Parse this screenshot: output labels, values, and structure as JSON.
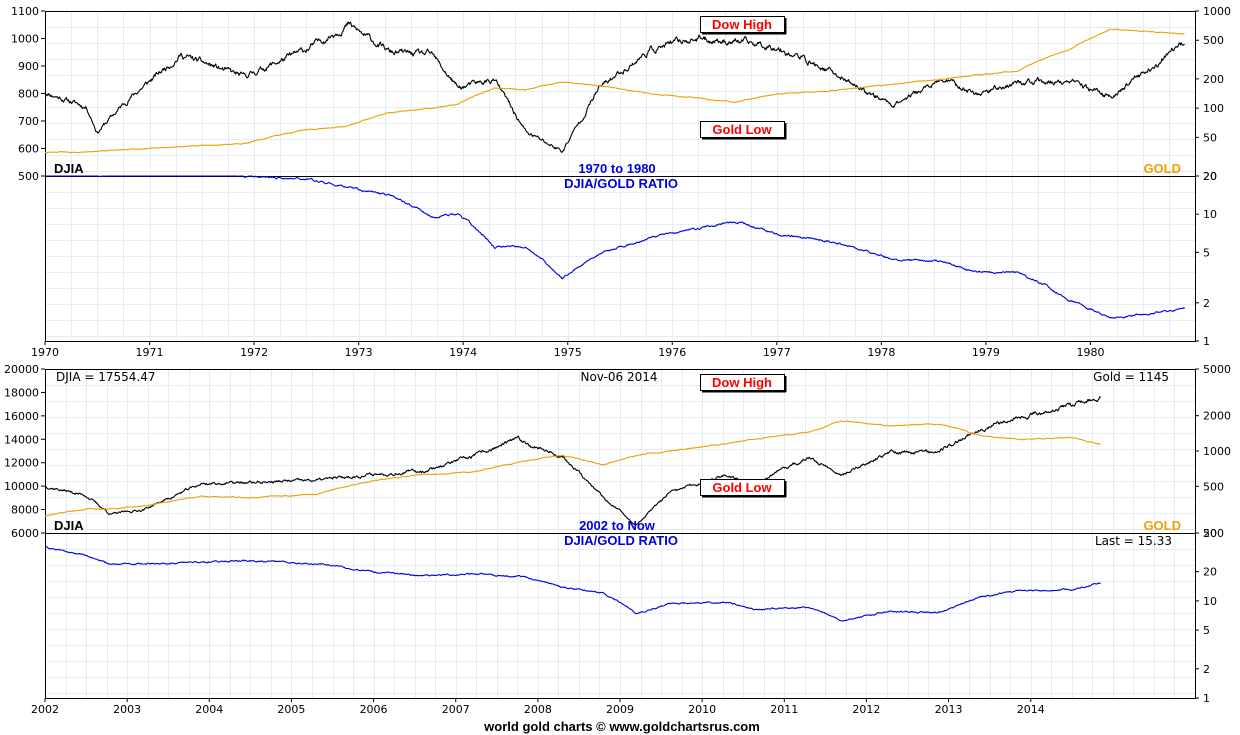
{
  "colors": {
    "djia": "#000000",
    "gold": "#f0a000",
    "ratio": "#0000dd",
    "grid": "#e4edf6",
    "note": "#ff0000"
  },
  "footer": "world gold charts © www.goldchartsrus.com",
  "panels": [
    {
      "id": "top",
      "range_label": "1970 to 1980",
      "ratio_title": "DJIA/GOLD RATIO",
      "djia_label": "DJIA",
      "gold_label": "GOLD",
      "dow_high_label": "Dow High",
      "gold_low_label": "Gold Low",
      "left_ticks": [
        "1100",
        "1000",
        "900",
        "800",
        "700",
        "600",
        "500"
      ],
      "right_ticks": [
        "1000",
        "500",
        "200",
        "100",
        "50",
        "20"
      ],
      "ratio_ticks": [
        "20",
        "10",
        "5",
        "2",
        "1"
      ],
      "year_labels": [
        "1970",
        "1971",
        "1972",
        "1973",
        "1974",
        "1975",
        "1976",
        "1977",
        "1978",
        "1979",
        "1980"
      ]
    },
    {
      "id": "bottom",
      "range_label": "2002 to Now",
      "ratio_title": "DJIA/GOLD RATIO",
      "djia_label": "DJIA",
      "gold_label": "GOLD",
      "dow_high_label": "Dow High",
      "gold_low_label": "Gold Low",
      "djia_value": "DJIA = 17554.47",
      "date": "Nov-06  2014",
      "gold_value": "Gold = 1145",
      "last_value": "Last = 15.33",
      "left_ticks": [
        "20000",
        "18000",
        "16000",
        "14000",
        "12000",
        "10000",
        "8000",
        "6000"
      ],
      "right_ticks": [
        "5000",
        "2000",
        "1000",
        "500",
        "200"
      ],
      "ratio_ticks": [
        "50",
        "20",
        "10",
        "5",
        "2",
        "1"
      ],
      "year_labels": [
        "2002",
        "2003",
        "2004",
        "2005",
        "2006",
        "2007",
        "2008",
        "2009",
        "2010",
        "2011",
        "2012",
        "2013",
        "2014"
      ]
    }
  ],
  "chart_data": [
    {
      "type": "line",
      "title": "1970 to 1980",
      "x": [
        1970.0,
        1970.4,
        1970.5,
        1970.8,
        1971.3,
        1971.9,
        1972.5,
        1972.9,
        1973.3,
        1973.7,
        1973.95,
        1974.3,
        1974.6,
        1974.95,
        1975.3,
        1975.8,
        1976.2,
        1976.6,
        1977.0,
        1977.5,
        1978.1,
        1978.6,
        1978.9,
        1979.3,
        1979.8,
        1980.2,
        1980.9
      ],
      "series": [
        {
          "name": "DJIA",
          "axis": "left",
          "values": [
            805,
            750,
            660,
            780,
            940,
            860,
            960,
            1050,
            950,
            940,
            820,
            850,
            660,
            590,
            820,
            960,
            1000,
            990,
            970,
            880,
            760,
            850,
            800,
            840,
            840,
            790,
            980
          ]
        },
        {
          "name": "GOLD",
          "axis": "right",
          "values": [
            35,
            35.5,
            36,
            37.5,
            40,
            43,
            60,
            65,
            90,
            100,
            110,
            160,
            155,
            185,
            170,
            140,
            128,
            115,
            140,
            150,
            175,
            200,
            220,
            240,
            400,
            650,
            580
          ]
        },
        {
          "name": "DJIA/GOLD RATIO",
          "axis": "ratio",
          "values": [
            23,
            21,
            20,
            21,
            23,
            20,
            19,
            16,
            14,
            9.5,
            10,
            5.5,
            5.5,
            3.1,
            4.8,
            6.6,
            7.5,
            8.8,
            7,
            6.1,
            4.4,
            4.2,
            3.5,
            3.5,
            2.1,
            1.5,
            1.8
          ]
        }
      ],
      "left_axis": {
        "label": "DJIA",
        "ylim": [
          500,
          1100
        ]
      },
      "right_axis": {
        "label": "GOLD",
        "scale": "log",
        "ylim": [
          20,
          1000
        ]
      },
      "ratio_axis": {
        "label": "DJIA/GOLD RATIO",
        "scale": "log",
        "ylim": [
          1,
          20
        ]
      },
      "annotations": [
        "Dow High",
        "Gold Low"
      ]
    },
    {
      "type": "line",
      "title": "2002 to Now",
      "x": [
        2002.0,
        2002.5,
        2002.8,
        2003.2,
        2003.9,
        2004.5,
        2005.3,
        2006.0,
        2006.6,
        2007.2,
        2007.75,
        2008.3,
        2008.8,
        2009.2,
        2009.6,
        2010.3,
        2010.6,
        2011.3,
        2011.7,
        2012.3,
        2012.9,
        2013.4,
        2013.9,
        2014.5,
        2014.85
      ],
      "series": [
        {
          "name": "DJIA",
          "axis": "left",
          "values": [
            10000,
            9200,
            7600,
            8000,
            10200,
            10300,
            10500,
            11000,
            11300,
            12500,
            14000,
            12500,
            9000,
            6700,
            9400,
            11000,
            10200,
            12400,
            11000,
            12900,
            13000,
            15000,
            16000,
            16900,
            17554
          ]
        },
        {
          "name": "GOLD",
          "axis": "right",
          "values": [
            280,
            320,
            320,
            340,
            410,
            400,
            430,
            560,
            630,
            660,
            800,
            920,
            760,
            920,
            1000,
            1150,
            1250,
            1450,
            1800,
            1650,
            1700,
            1350,
            1250,
            1300,
            1145
          ]
        },
        {
          "name": "DJIA/GOLD RATIO",
          "axis": "ratio",
          "values": [
            36,
            29,
            24,
            24,
            25,
            26,
            24,
            20,
            18,
            19,
            18,
            14,
            12,
            7.3,
            9.4,
            9.6,
            8.2,
            8.6,
            6.1,
            7.8,
            7.6,
            11,
            12.8,
            13,
            15.33
          ]
        }
      ],
      "left_axis": {
        "label": "DJIA",
        "ylim": [
          6000,
          20000
        ]
      },
      "right_axis": {
        "label": "GOLD",
        "scale": "log",
        "ylim": [
          200,
          5000
        ]
      },
      "ratio_axis": {
        "label": "DJIA/GOLD RATIO",
        "scale": "log",
        "ylim": [
          1,
          50
        ]
      },
      "annotations": [
        "Dow High",
        "Gold Low"
      ]
    }
  ]
}
